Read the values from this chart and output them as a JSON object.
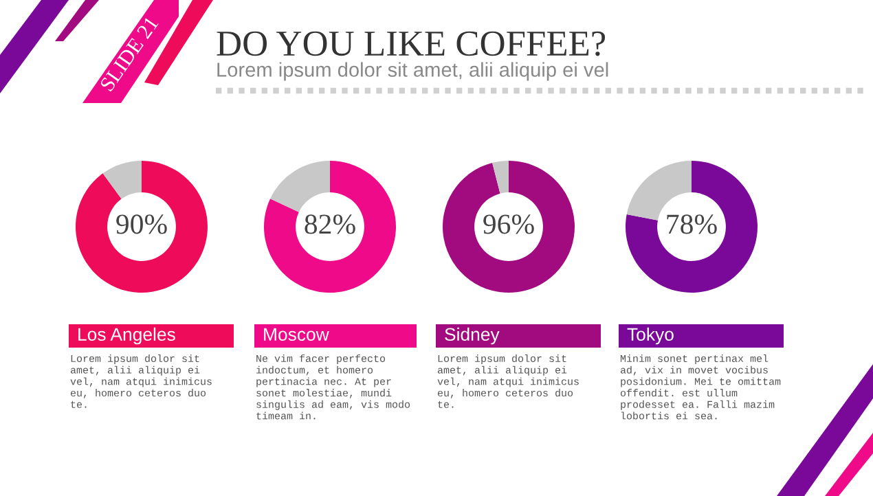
{
  "chart_data": [
    {
      "type": "other",
      "title": "DO YOU LIKE COFFEE?",
      "subtitle": "Lorem ipsum dolor sit amet, alii aliquip ei vel",
      "annotations": [
        "SLIDE 21"
      ]
    },
    {
      "type": "donut",
      "title": "Los Angeles",
      "categories": [
        null,
        null
      ],
      "values": [
        90,
        10
      ],
      "colors": [
        "#ee0c5a",
        "#c8c8c8"
      ],
      "value_labels": [
        "90%",
        null
      ],
      "annotations": [
        "Lorem ipsum dolor sit\namet, alii aliquip ei\nvel, nam atqui inimicus\neu, homero ceteros duo\nte."
      ]
    },
    {
      "type": "donut",
      "title": "Moscow",
      "categories": [
        null,
        null
      ],
      "values": [
        82,
        18
      ],
      "colors": [
        "#ee0a88",
        "#c8c8c8"
      ],
      "value_labels": [
        "82%",
        null
      ],
      "annotations": [
        "Ne vim facer perfecto\nindoctum, et homero\npertinacia nec. At per\nsonet molestiae, mundi\nsingulis ad eam, vis modo\ntimeam in."
      ]
    },
    {
      "type": "donut",
      "title": "Sidney",
      "categories": [
        null,
        null
      ],
      "values": [
        96,
        4
      ],
      "colors": [
        "#a20a80",
        "#c8c8c8"
      ],
      "value_labels": [
        "96%",
        null
      ],
      "annotations": [
        "Lorem ipsum dolor sit\namet, alii aliquip ei\nvel, nam atqui inimicus\neu, homero ceteros duo\nte."
      ]
    },
    {
      "type": "donut",
      "title": "Tokyo",
      "categories": [
        null,
        null
      ],
      "values": [
        78,
        22
      ],
      "colors": [
        "#7a0898",
        "#c8c8c8"
      ],
      "value_labels": [
        "78%",
        null
      ],
      "annotations": [
        "Minim sonet pertinax mel\nad, vix in movet vocibus\nposidonium. Mei te omittam\noffendit. est ullum\nprodesset ea. Falli mazim\nlobortis ei sea."
      ]
    }
  ]
}
